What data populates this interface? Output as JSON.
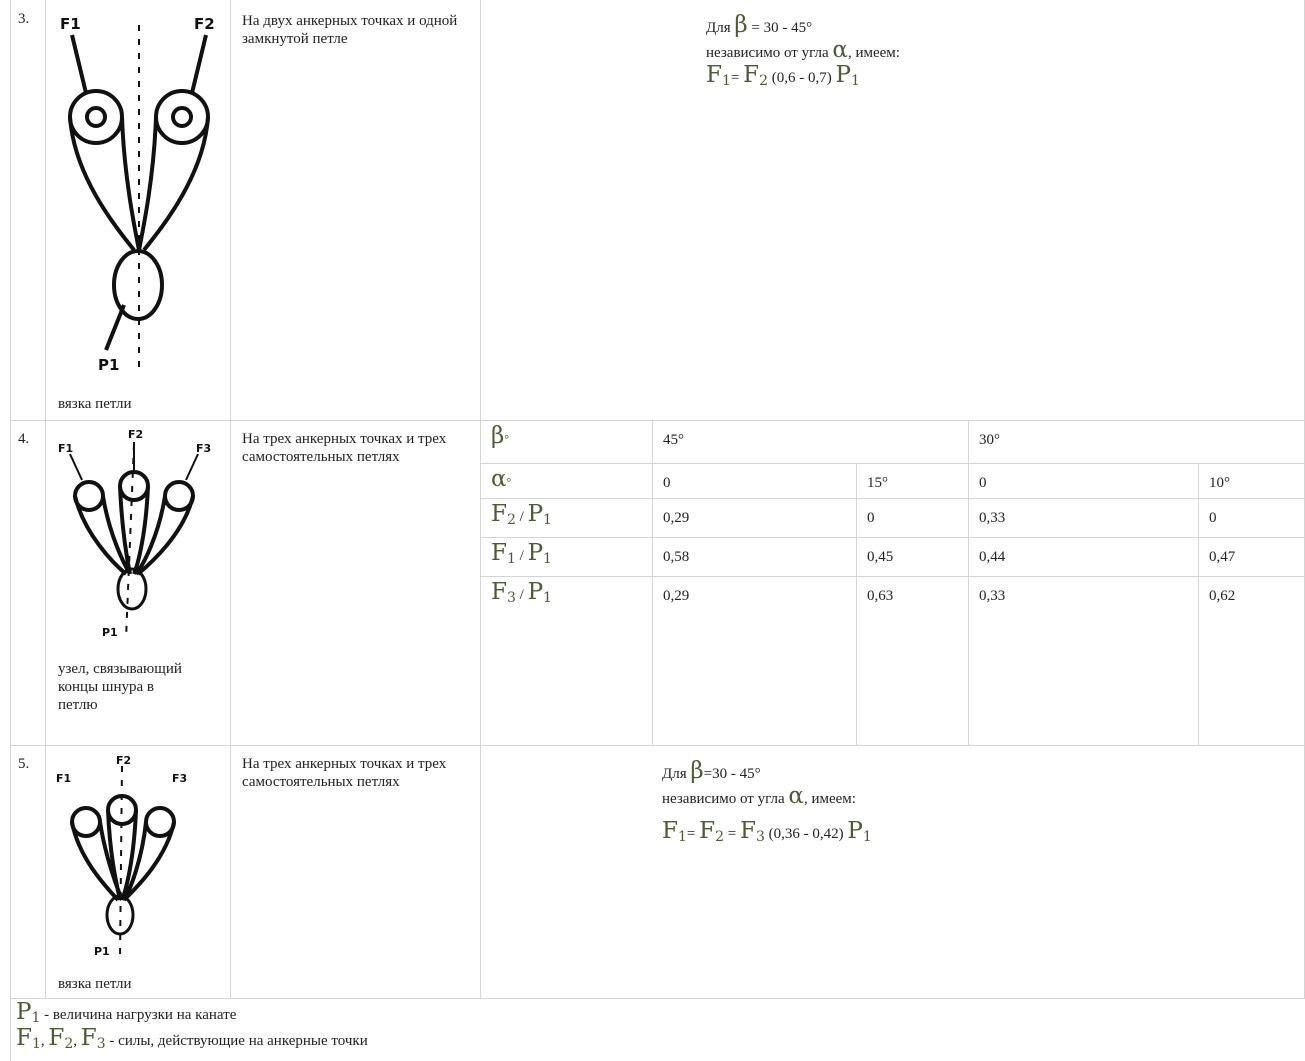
{
  "rows": [
    {
      "number": "3.",
      "caption": "вязка петли",
      "description": "На двух анкерных точках и одной замкнутой петле",
      "figure_labels": [
        "F1",
        "F2",
        "P1"
      ],
      "note": [
        [
          {
            "text": "Для "
          },
          {
            "symbol": "β"
          },
          {
            "text": " = 30 - 45°"
          }
        ],
        [
          {
            "text": "независимо от угла "
          },
          {
            "symbol": "α"
          },
          {
            "text": ", имеем:"
          }
        ],
        [
          {
            "symbol": "F",
            "sub": "1"
          },
          {
            "text": "= "
          },
          {
            "symbol": "F",
            "sub": "2"
          },
          {
            "text": " (0,6 - 0,7) "
          },
          {
            "symbol": "P",
            "sub": "1"
          }
        ]
      ]
    },
    {
      "number": "4.",
      "caption": "узел, связывающий концы шнура в петлю",
      "description": "На трех анкерных точках и трех самостоятельных петлях",
      "figure_labels": [
        "F1",
        "F2",
        "F3",
        "P1"
      ],
      "table": {
        "beta_label": [
          {
            "symbol": "β",
            "suffix": "°"
          }
        ],
        "beta_values": [
          "45°",
          "30°"
        ],
        "alpha_label": [
          {
            "symbol": "α",
            "suffix": "°"
          }
        ],
        "alpha_values": [
          "0",
          "15°",
          "0",
          "10°"
        ],
        "rows": [
          {
            "label": [
              {
                "symbol": "F",
                "sub": "2"
              },
              {
                "text": " / "
              },
              {
                "symbol": "P",
                "sub": "1"
              }
            ],
            "values": [
              "0,29",
              "0",
              "0,33",
              "0"
            ]
          },
          {
            "label": [
              {
                "symbol": "F",
                "sub": "1"
              },
              {
                "text": " / "
              },
              {
                "symbol": "P",
                "sub": "1"
              }
            ],
            "values": [
              "0,58",
              "0,45",
              "0,44",
              "0,47"
            ]
          },
          {
            "label": [
              {
                "symbol": "F",
                "sub": "3"
              },
              {
                "text": " / "
              },
              {
                "symbol": "P",
                "sub": "1"
              }
            ],
            "values": [
              "0,29",
              "0,63",
              "0,33",
              "0,62"
            ]
          }
        ]
      }
    },
    {
      "number": "5.",
      "caption": "вязка петли",
      "description": "На трех анкерных точках и трех самостоятельных петлях",
      "figure_labels": [
        "F1",
        "F2",
        "F3",
        "P1"
      ],
      "note": [
        [
          {
            "text": "Для "
          },
          {
            "symbol": "β"
          },
          {
            "text": "=30 - 45°"
          }
        ],
        [
          {
            "text": "независимо от угла "
          },
          {
            "symbol": "α"
          },
          {
            "text": ", имеем:"
          }
        ],
        [
          {
            "symbol": "F",
            "sub": "1"
          },
          {
            "text": "= "
          },
          {
            "symbol": "F",
            "sub": "2"
          },
          {
            "text": " = "
          },
          {
            "symbol": "F",
            "sub": "3"
          },
          {
            "text": " (0,36 - 0,42) "
          },
          {
            "symbol": "P",
            "sub": "1"
          }
        ]
      ]
    }
  ],
  "footer": [
    [
      {
        "symbol": "P",
        "sub": "1"
      },
      {
        "text": " - величина нагрузки на канате"
      }
    ],
    [
      {
        "symbol": "F",
        "sub": "1"
      },
      {
        "text": ", "
      },
      {
        "symbol": "F",
        "sub": "2"
      },
      {
        "text": ", "
      },
      {
        "symbol": "F",
        "sub": "3"
      },
      {
        "text": " - силы, действующие на анкерные точки"
      }
    ]
  ]
}
